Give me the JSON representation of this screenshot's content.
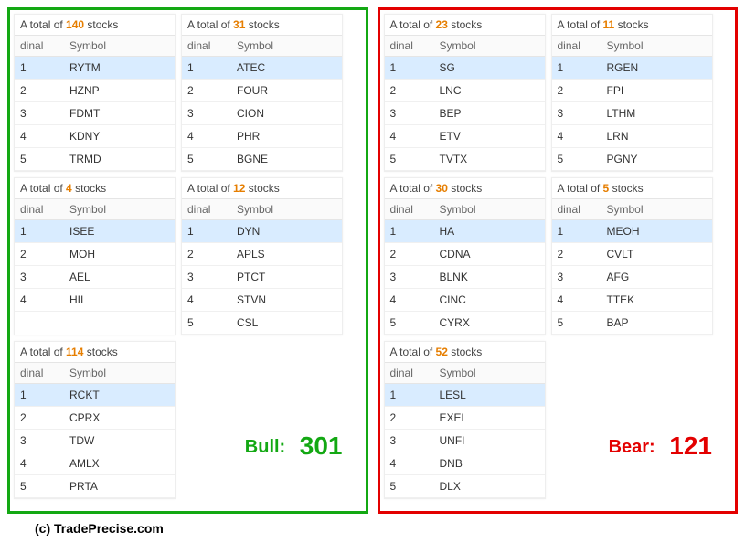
{
  "labels": {
    "total_prefix": "A total of ",
    "total_suffix": " stocks",
    "ordinal_header": "dinal",
    "symbol_header": "Symbol",
    "bull_label": "Bull:",
    "bear_label": "Bear:",
    "credit": "(c) TradePrecise.com"
  },
  "colors": {
    "bull": "#13a813",
    "bear": "#e30000",
    "accent_number": "#e67e00",
    "row_highlight": "#d9ecff"
  },
  "bull": {
    "total": 301,
    "blocks": [
      {
        "count": 140,
        "symbols": [
          "RYTM",
          "HZNP",
          "FDMT",
          "KDNY",
          "TRMD"
        ]
      },
      {
        "count": 31,
        "symbols": [
          "ATEC",
          "FOUR",
          "CION",
          "PHR",
          "BGNE"
        ]
      },
      {
        "count": 4,
        "symbols": [
          "ISEE",
          "MOH",
          "AEL",
          "HII"
        ]
      },
      {
        "count": 12,
        "symbols": [
          "DYN",
          "APLS",
          "PTCT",
          "STVN",
          "CSL"
        ]
      },
      {
        "count": 114,
        "symbols": [
          "RCKT",
          "CPRX",
          "TDW",
          "AMLX",
          "PRTA"
        ]
      }
    ]
  },
  "bear": {
    "total": 121,
    "blocks": [
      {
        "count": 23,
        "symbols": [
          "SG",
          "LNC",
          "BEP",
          "ETV",
          "TVTX"
        ]
      },
      {
        "count": 11,
        "symbols": [
          "RGEN",
          "FPI",
          "LTHM",
          "LRN",
          "PGNY"
        ]
      },
      {
        "count": 30,
        "symbols": [
          "HA",
          "CDNA",
          "BLNK",
          "CINC",
          "CYRX"
        ]
      },
      {
        "count": 5,
        "symbols": [
          "MEOH",
          "CVLT",
          "AFG",
          "TTEK",
          "BAP"
        ]
      },
      {
        "count": 52,
        "symbols": [
          "LESL",
          "EXEL",
          "UNFI",
          "DNB",
          "DLX"
        ]
      }
    ]
  }
}
